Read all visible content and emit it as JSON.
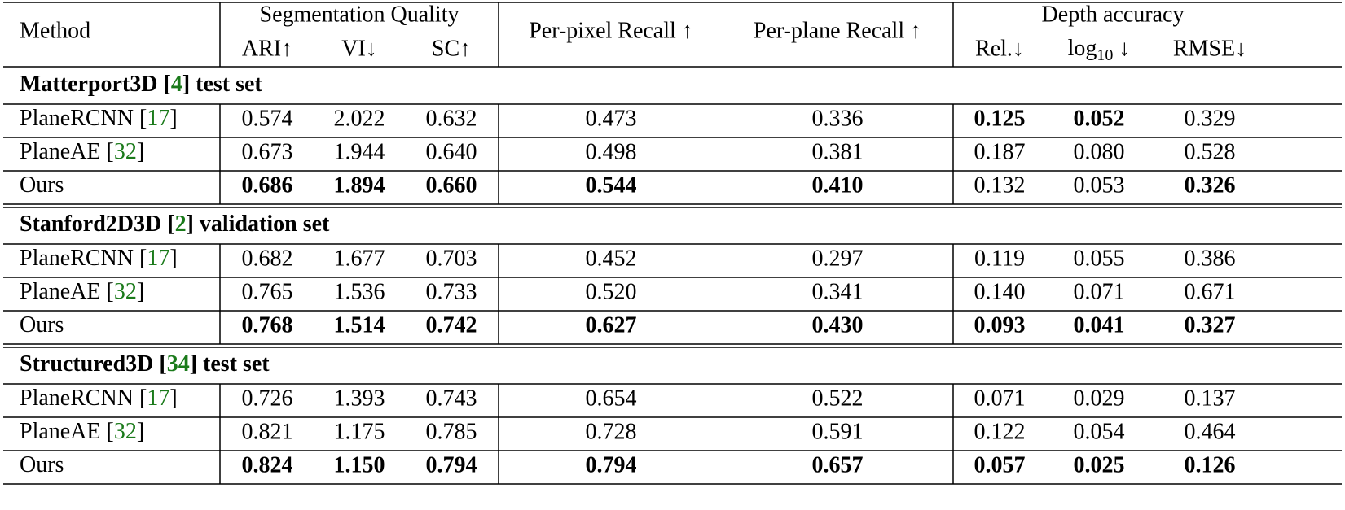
{
  "table": {
    "header": {
      "method": "Method",
      "groups": [
        "Segmentation Quality",
        "Depth accuracy"
      ],
      "columns": [
        "ARI↑",
        "VI↓",
        "SC↑",
        "Per-pixel Recall ↑",
        "Per-plane Recall ↑",
        "Rel.↓",
        {
          "base": "log",
          "sub": "10",
          "suffix": " ↓"
        },
        "RMSE↓"
      ]
    },
    "ref_color": "#1a7a1a",
    "sections": [
      {
        "title": [
          "Matterport3D [",
          "4",
          "] test set"
        ],
        "rows": [
          {
            "method": [
              "PlaneRCNN [",
              "17",
              "]"
            ],
            "values": [
              "0.574",
              "2.022",
              "0.632",
              "0.473",
              "0.336",
              "0.125",
              "0.052",
              "0.329"
            ],
            "bold": [
              false,
              false,
              false,
              false,
              false,
              true,
              true,
              false
            ]
          },
          {
            "method": [
              "PlaneAE [",
              "32",
              "]"
            ],
            "values": [
              "0.673",
              "1.944",
              "0.640",
              "0.498",
              "0.381",
              "0.187",
              "0.080",
              "0.528"
            ],
            "bold": [
              false,
              false,
              false,
              false,
              false,
              false,
              false,
              false
            ]
          },
          {
            "method": [
              "Ours"
            ],
            "values": [
              "0.686",
              "1.894",
              "0.660",
              "0.544",
              "0.410",
              "0.132",
              "0.053",
              "0.326"
            ],
            "bold": [
              true,
              true,
              true,
              true,
              true,
              false,
              false,
              true
            ]
          }
        ]
      },
      {
        "title": [
          "Stanford2D3D [",
          "2",
          "] validation set"
        ],
        "rows": [
          {
            "method": [
              "PlaneRCNN [",
              "17",
              "]"
            ],
            "values": [
              "0.682",
              "1.677",
              "0.703",
              "0.452",
              "0.297",
              "0.119",
              "0.055",
              "0.386"
            ],
            "bold": [
              false,
              false,
              false,
              false,
              false,
              false,
              false,
              false
            ]
          },
          {
            "method": [
              "PlaneAE [",
              "32",
              "]"
            ],
            "values": [
              "0.765",
              "1.536",
              "0.733",
              "0.520",
              "0.341",
              "0.140",
              "0.071",
              "0.671"
            ],
            "bold": [
              false,
              false,
              false,
              false,
              false,
              false,
              false,
              false
            ]
          },
          {
            "method": [
              "Ours"
            ],
            "values": [
              "0.768",
              "1.514",
              "0.742",
              "0.627",
              "0.430",
              "0.093",
              "0.041",
              "0.327"
            ],
            "bold": [
              true,
              true,
              true,
              true,
              true,
              true,
              true,
              true
            ]
          }
        ]
      },
      {
        "title": [
          "Structured3D [",
          "34",
          "] test set"
        ],
        "rows": [
          {
            "method": [
              "PlaneRCNN [",
              "17",
              "]"
            ],
            "values": [
              "0.726",
              "1.393",
              "0.743",
              "0.654",
              "0.522",
              "0.071",
              "0.029",
              "0.137"
            ],
            "bold": [
              false,
              false,
              false,
              false,
              false,
              false,
              false,
              false
            ]
          },
          {
            "method": [
              "PlaneAE [",
              "32",
              "]"
            ],
            "values": [
              "0.821",
              "1.175",
              "0.785",
              "0.728",
              "0.591",
              "0.122",
              "0.054",
              "0.464"
            ],
            "bold": [
              false,
              false,
              false,
              false,
              false,
              false,
              false,
              false
            ]
          },
          {
            "method": [
              "Ours"
            ],
            "values": [
              "0.824",
              "1.150",
              "0.794",
              "0.794",
              "0.657",
              "0.057",
              "0.025",
              "0.126"
            ],
            "bold": [
              true,
              true,
              true,
              true,
              true,
              true,
              true,
              true
            ]
          }
        ]
      }
    ]
  }
}
